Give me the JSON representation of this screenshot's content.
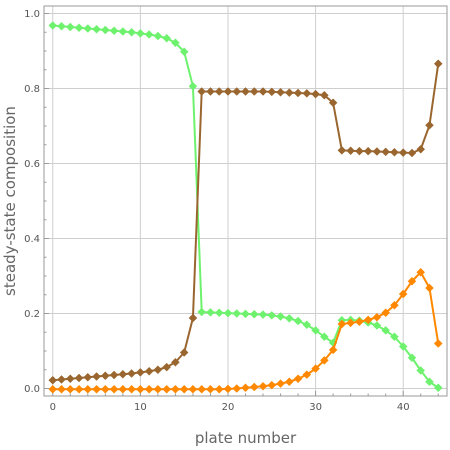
{
  "chart_data": {
    "type": "line",
    "title": "",
    "xlabel": "plate number",
    "ylabel": "steady-state composition",
    "xlim": [
      -1,
      45
    ],
    "ylim": [
      -0.02,
      1.02
    ],
    "grid": true,
    "x_ticks": [
      0,
      10,
      20,
      30,
      40
    ],
    "y_ticks": [
      0.0,
      0.2,
      0.4,
      0.6,
      0.8,
      1.0
    ],
    "x_tick_labels": [
      "0",
      "10",
      "20",
      "30",
      "40"
    ],
    "y_tick_labels": [
      "0.0",
      "0.2",
      "0.4",
      "0.6",
      "0.8",
      "1.0"
    ],
    "x": [
      0,
      1,
      2,
      3,
      4,
      5,
      6,
      7,
      8,
      9,
      10,
      11,
      12,
      13,
      14,
      15,
      16,
      17,
      18,
      19,
      20,
      21,
      22,
      23,
      24,
      25,
      26,
      27,
      28,
      29,
      30,
      31,
      32,
      33,
      34,
      35,
      36,
      37,
      38,
      39,
      40,
      41,
      42,
      43,
      44
    ],
    "series": [
      {
        "color": "#6ef26e",
        "marker": "diamond",
        "values": [
          0.968,
          0.966,
          0.964,
          0.962,
          0.96,
          0.958,
          0.956,
          0.954,
          0.952,
          0.95,
          0.947,
          0.944,
          0.94,
          0.934,
          0.922,
          0.898,
          0.806,
          0.204,
          0.203,
          0.202,
          0.201,
          0.2,
          0.199,
          0.198,
          0.197,
          0.195,
          0.192,
          0.187,
          0.18,
          0.17,
          0.155,
          0.138,
          0.122,
          0.182,
          0.183,
          0.181,
          0.176,
          0.168,
          0.155,
          0.138,
          0.112,
          0.082,
          0.048,
          0.018,
          0.002
        ]
      },
      {
        "color": "#9a6630",
        "marker": "diamond",
        "values": [
          0.022,
          0.024,
          0.026,
          0.028,
          0.03,
          0.032,
          0.034,
          0.036,
          0.038,
          0.04,
          0.043,
          0.046,
          0.05,
          0.057,
          0.07,
          0.096,
          0.188,
          0.792,
          0.792,
          0.792,
          0.792,
          0.792,
          0.792,
          0.792,
          0.792,
          0.791,
          0.79,
          0.789,
          0.788,
          0.787,
          0.785,
          0.782,
          0.762,
          0.635,
          0.634,
          0.633,
          0.633,
          0.632,
          0.631,
          0.63,
          0.629,
          0.628,
          0.638,
          0.702,
          0.866
        ]
      },
      {
        "color": "#ff8800",
        "marker": "diamond",
        "values": [
          -0.002,
          -0.002,
          -0.002,
          -0.002,
          -0.002,
          -0.002,
          -0.002,
          -0.002,
          -0.002,
          -0.002,
          -0.002,
          -0.002,
          -0.002,
          -0.002,
          -0.002,
          -0.002,
          -0.002,
          -0.002,
          -0.002,
          -0.002,
          -0.001,
          0.0,
          0.002,
          0.004,
          0.006,
          0.009,
          0.013,
          0.018,
          0.026,
          0.037,
          0.053,
          0.075,
          0.103,
          0.172,
          0.175,
          0.178,
          0.183,
          0.19,
          0.202,
          0.222,
          0.252,
          0.286,
          0.31,
          0.268,
          0.12
        ]
      }
    ]
  }
}
